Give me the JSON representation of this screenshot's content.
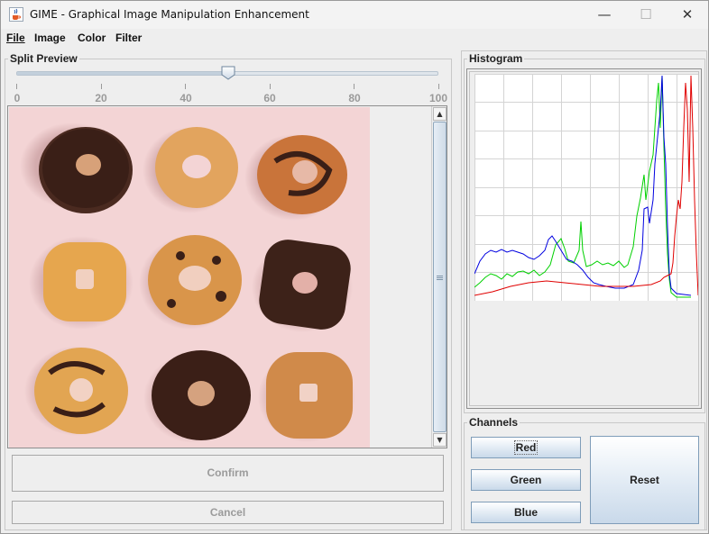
{
  "window": {
    "title": "GIME - Graphical Image Manipulation Enhancement",
    "minimize_glyph": "—",
    "maximize_glyph": "☐",
    "close_glyph": "✕"
  },
  "menu": {
    "items": [
      {
        "label": "File",
        "mnemonic_underlined": true
      },
      {
        "label": "Image"
      },
      {
        "label": "Color"
      },
      {
        "label": "Filter"
      }
    ]
  },
  "split_preview": {
    "title": "Split Preview",
    "slider": {
      "min": 0,
      "max": 100,
      "value": 50,
      "major_ticks": [
        "0",
        "20",
        "40",
        "60",
        "80",
        "100"
      ]
    }
  },
  "preview": {
    "image_description_icon": "donuts-photo",
    "colors": {
      "background": "#f3d4d5",
      "chocolate": "#3a1f17",
      "dough": "#d99a52",
      "sugar": "#e9b977"
    }
  },
  "actions": {
    "confirm_label": "Confirm",
    "cancel_label": "Cancel",
    "enabled": false
  },
  "histogram": {
    "title": "Histogram",
    "channels_shown": [
      "red",
      "green",
      "blue"
    ],
    "colors": {
      "red": "#e00000",
      "green": "#00d000",
      "blue": "#0000e0"
    }
  },
  "channels": {
    "title": "Channels",
    "red_label": "Red",
    "green_label": "Green",
    "blue_label": "Blue",
    "reset_label": "Reset",
    "focused": "Red"
  }
}
